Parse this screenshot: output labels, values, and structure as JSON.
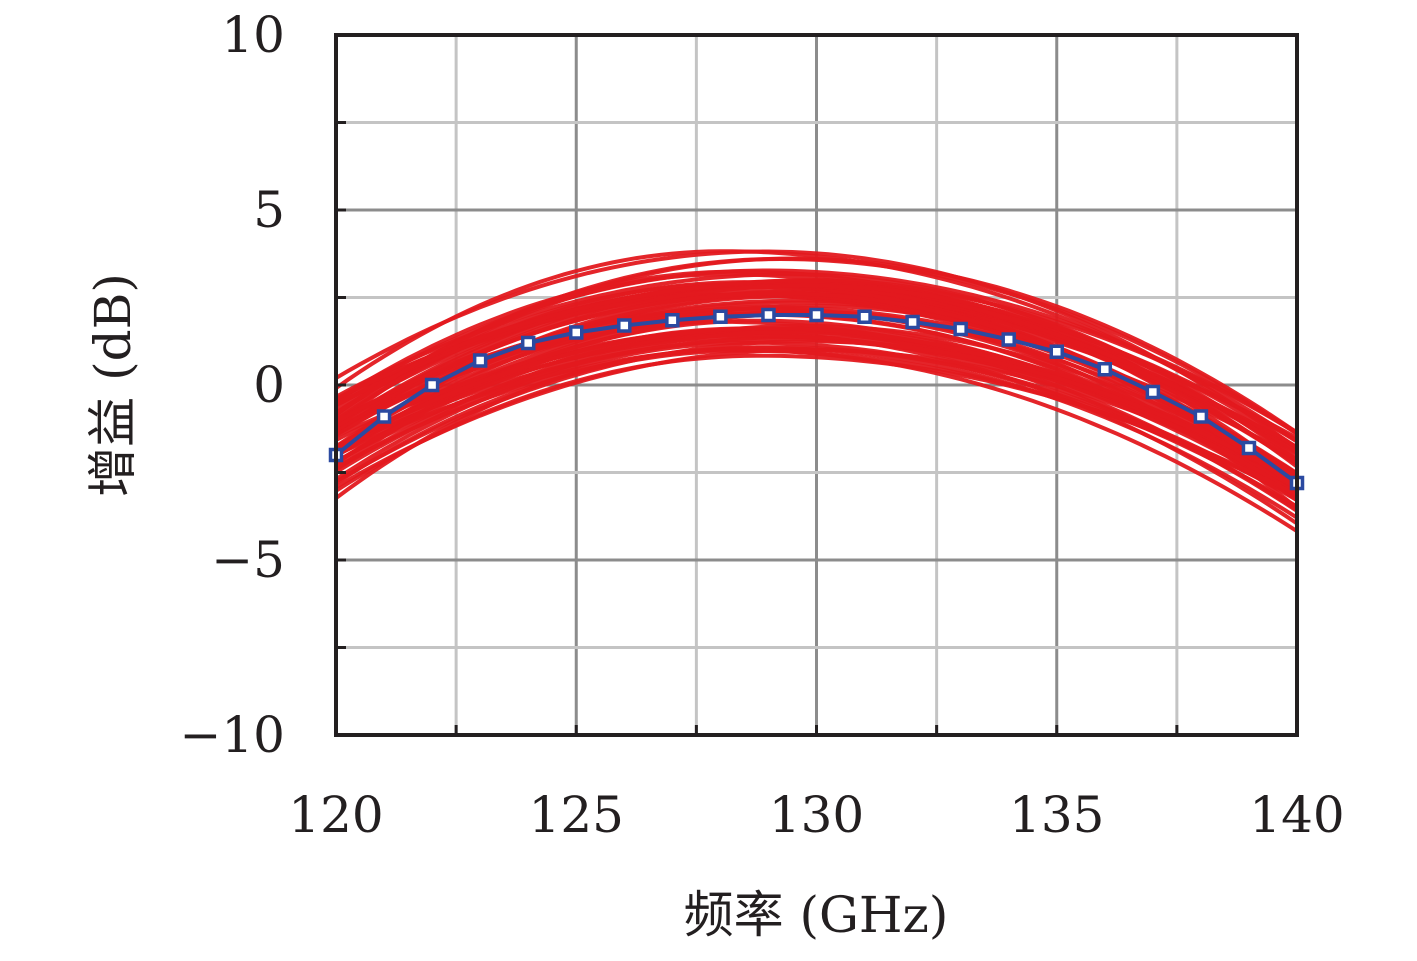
{
  "chart_data": {
    "type": "line",
    "xlabel": "频率 (GHz)",
    "ylabel": "增益 (dB)",
    "xlim": [
      120,
      140
    ],
    "ylim": [
      -10,
      10
    ],
    "xticks": [
      120,
      125,
      130,
      135,
      140
    ],
    "xtick_labels": [
      "120",
      "125",
      "130",
      "135",
      "140"
    ],
    "yticks": [
      10,
      5,
      0,
      -5,
      -10
    ],
    "ytick_labels": [
      "10",
      "5",
      "0",
      "−5",
      "−10"
    ],
    "grid": true,
    "colors": {
      "ensemble": "#e3191f",
      "nominal": "#2b4aa1"
    },
    "ensemble": {
      "count": 60,
      "peak_freq_range": [
        128,
        130
      ],
      "peak_gain_range": [
        0.7,
        3.9
      ],
      "gain_at_120_range": [
        -3.7,
        0.2
      ],
      "gain_at_140_range": [
        -4.6,
        -1.0
      ]
    },
    "series": [
      {
        "x": [
          120,
          121,
          122,
          123,
          124,
          125,
          126,
          127,
          128,
          129,
          130,
          131,
          132,
          133,
          134,
          135,
          136,
          137,
          138,
          139,
          140
        ],
        "values": [
          -2.0,
          -0.9,
          0.0,
          0.7,
          1.2,
          1.5,
          1.7,
          1.85,
          1.95,
          2.0,
          2.0,
          1.95,
          1.8,
          1.6,
          1.3,
          0.95,
          0.45,
          -0.2,
          -0.9,
          -1.8,
          -2.8
        ]
      }
    ]
  }
}
